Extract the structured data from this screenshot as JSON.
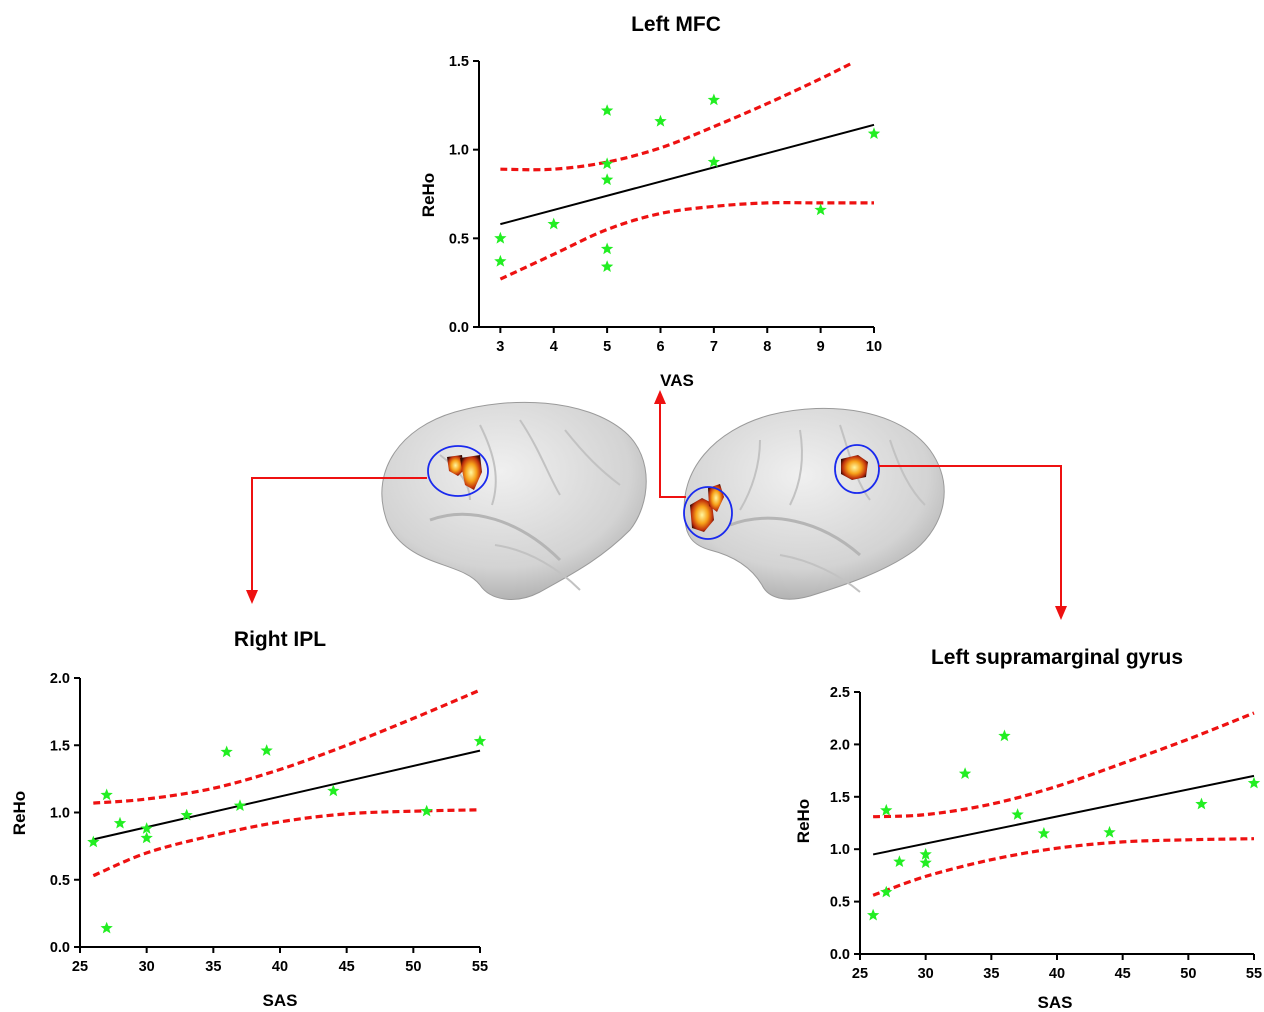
{
  "colors": {
    "points": "#22ee22",
    "fit_line": "#000000",
    "confidence_band": "#ee1111",
    "arrows": "#ee1111",
    "roi_circle": "#1a2aee",
    "brain": "#d6d6d6"
  },
  "brain_figure": {
    "icons": [
      "right-hemisphere-brain",
      "left-hemisphere-brain",
      "roi-circle",
      "activation-blob"
    ]
  },
  "chart_data": [
    {
      "type": "scatter",
      "title": "Left MFC",
      "xlabel": "VAS",
      "ylabel": "ReHo",
      "xlim": [
        2.6,
        10
      ],
      "ylim": [
        0,
        1.5
      ],
      "xticks": [
        3,
        4,
        5,
        6,
        7,
        8,
        9,
        10
      ],
      "xtick_labels": [
        "3",
        "4",
        "5",
        "6",
        "7",
        "8",
        "9",
        "10"
      ],
      "yticks": [
        0,
        0.5,
        1.0,
        1.5
      ],
      "ytick_labels": [
        "0.0",
        "0.5",
        "1.0",
        "1.5"
      ],
      "grid": false,
      "marker": "star",
      "points": [
        {
          "x": 3,
          "y": 0.5
        },
        {
          "x": 3,
          "y": 0.37
        },
        {
          "x": 4,
          "y": 0.58
        },
        {
          "x": 5,
          "y": 1.22
        },
        {
          "x": 5,
          "y": 0.92
        },
        {
          "x": 5,
          "y": 0.83
        },
        {
          "x": 5,
          "y": 0.44
        },
        {
          "x": 5,
          "y": 0.34
        },
        {
          "x": 6,
          "y": 1.16
        },
        {
          "x": 7,
          "y": 1.28
        },
        {
          "x": 7,
          "y": 0.93
        },
        {
          "x": 9,
          "y": 0.66
        },
        {
          "x": 10,
          "y": 1.09
        }
      ],
      "fit_line": {
        "x": [
          3,
          10
        ],
        "y": [
          0.58,
          1.14
        ]
      },
      "ci_upper": {
        "x": [
          3,
          4,
          5,
          6,
          7,
          8,
          9,
          9.6
        ],
        "y": [
          0.89,
          0.89,
          0.93,
          1.01,
          1.13,
          1.26,
          1.4,
          1.49
        ]
      },
      "ci_lower": {
        "x": [
          3,
          4,
          5,
          6,
          7,
          8,
          9,
          10
        ],
        "y": [
          0.27,
          0.41,
          0.55,
          0.64,
          0.68,
          0.7,
          0.7,
          0.7
        ]
      }
    },
    {
      "type": "scatter",
      "title": "Right IPL",
      "xlabel": "SAS",
      "ylabel": "ReHo",
      "xlim": [
        25,
        55
      ],
      "ylim": [
        0,
        2.0
      ],
      "xticks": [
        25,
        30,
        35,
        40,
        45,
        50,
        55
      ],
      "xtick_labels": [
        "25",
        "30",
        "35",
        "40",
        "45",
        "50",
        "55"
      ],
      "yticks": [
        0,
        0.5,
        1.0,
        1.5,
        2.0
      ],
      "ytick_labels": [
        "0.0",
        "0.5",
        "1.0",
        "1.5",
        "2.0"
      ],
      "grid": false,
      "marker": "star",
      "points": [
        {
          "x": 26,
          "y": 0.78
        },
        {
          "x": 27,
          "y": 1.13
        },
        {
          "x": 27,
          "y": 0.14
        },
        {
          "x": 28,
          "y": 0.92
        },
        {
          "x": 30,
          "y": 0.88
        },
        {
          "x": 30,
          "y": 0.81
        },
        {
          "x": 33,
          "y": 0.98
        },
        {
          "x": 36,
          "y": 1.45
        },
        {
          "x": 37,
          "y": 1.05
        },
        {
          "x": 39,
          "y": 1.46
        },
        {
          "x": 44,
          "y": 1.16
        },
        {
          "x": 51,
          "y": 1.01
        },
        {
          "x": 55,
          "y": 1.53
        }
      ],
      "fit_line": {
        "x": [
          26,
          55
        ],
        "y": [
          0.8,
          1.46
        ]
      },
      "ci_upper": {
        "x": [
          26,
          30,
          35,
          40,
          45,
          50,
          55
        ],
        "y": [
          1.07,
          1.1,
          1.18,
          1.32,
          1.5,
          1.7,
          1.91
        ]
      },
      "ci_lower": {
        "x": [
          26,
          30,
          35,
          40,
          45,
          50,
          55
        ],
        "y": [
          0.53,
          0.7,
          0.83,
          0.93,
          0.99,
          1.01,
          1.02
        ]
      }
    },
    {
      "type": "scatter",
      "title": "Left supramarginal gyrus",
      "xlabel": "SAS",
      "ylabel": "ReHo",
      "xlim": [
        25,
        55
      ],
      "ylim": [
        0,
        2.5
      ],
      "xticks": [
        25,
        30,
        35,
        40,
        45,
        50,
        55
      ],
      "xtick_labels": [
        "25",
        "30",
        "35",
        "40",
        "45",
        "50",
        "55"
      ],
      "yticks": [
        0,
        0.5,
        1.0,
        1.5,
        2.0,
        2.5
      ],
      "ytick_labels": [
        "0.0",
        "0.5",
        "1.0",
        "1.5",
        "2.0",
        "2.5"
      ],
      "grid": false,
      "marker": "star",
      "points": [
        {
          "x": 26,
          "y": 0.37
        },
        {
          "x": 27,
          "y": 1.37
        },
        {
          "x": 27,
          "y": 0.59
        },
        {
          "x": 28,
          "y": 0.88
        },
        {
          "x": 30,
          "y": 0.95
        },
        {
          "x": 30,
          "y": 0.87
        },
        {
          "x": 33,
          "y": 1.72
        },
        {
          "x": 36,
          "y": 2.08
        },
        {
          "x": 37,
          "y": 1.33
        },
        {
          "x": 39,
          "y": 1.15
        },
        {
          "x": 44,
          "y": 1.16
        },
        {
          "x": 51,
          "y": 1.43
        },
        {
          "x": 55,
          "y": 1.63
        }
      ],
      "fit_line": {
        "x": [
          26,
          55
        ],
        "y": [
          0.95,
          1.7
        ]
      },
      "ci_upper": {
        "x": [
          26,
          30,
          35,
          40,
          45,
          50,
          55
        ],
        "y": [
          1.31,
          1.33,
          1.43,
          1.6,
          1.82,
          2.05,
          2.3
        ]
      },
      "ci_lower": {
        "x": [
          26,
          30,
          35,
          40,
          45,
          50,
          55
        ],
        "y": [
          0.56,
          0.74,
          0.9,
          1.01,
          1.07,
          1.09,
          1.1
        ]
      }
    }
  ]
}
